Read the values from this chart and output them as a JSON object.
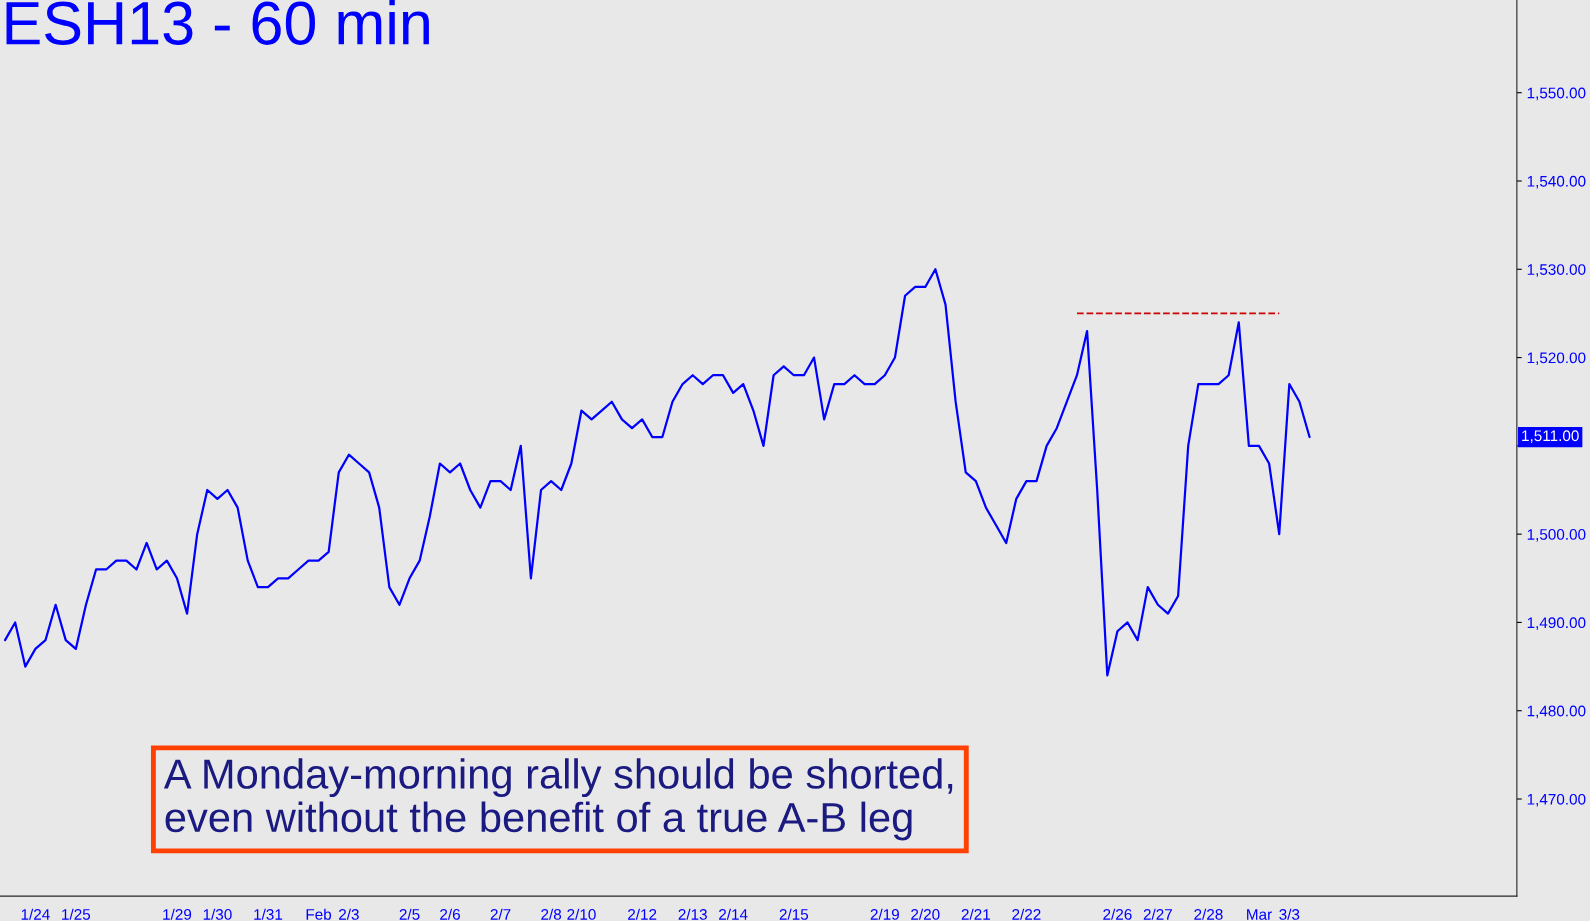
{
  "chart_data": {
    "type": "line",
    "title": "ESH13 - 60 min",
    "annotations": [
      "A Monday-morning rally should be shorted,\neven without the benefit of a true A-B leg",
      "1,511.00"
    ],
    "categories": [
      null,
      null,
      null,
      "1/24",
      null,
      null,
      null,
      "1/25",
      null,
      null,
      null,
      null,
      null,
      null,
      null,
      null,
      null,
      "1/29",
      null,
      null,
      null,
      "1/30",
      null,
      null,
      null,
      null,
      "1/31",
      null,
      null,
      null,
      null,
      "Feb",
      null,
      null,
      "2/3",
      null,
      null,
      null,
      null,
      null,
      "2/5",
      null,
      null,
      null,
      "2/6",
      null,
      null,
      null,
      null,
      "2/7",
      null,
      null,
      null,
      null,
      "2/8",
      null,
      null,
      "2/10",
      null,
      null,
      null,
      null,
      null,
      "2/12",
      null,
      null,
      null,
      null,
      "2/13",
      null,
      null,
      null,
      "2/14",
      null,
      null,
      null,
      null,
      null,
      "2/15",
      null,
      null,
      null,
      null,
      null,
      null,
      null,
      null,
      "2/19",
      null,
      null,
      null,
      "2/20",
      null,
      null,
      null,
      null,
      "2/21",
      null,
      null,
      null,
      null,
      "2/22",
      null,
      null,
      null,
      null,
      null,
      null,
      null,
      null,
      "2/26",
      null,
      null,
      null,
      "2/27",
      null,
      null,
      null,
      null,
      "2/28",
      null,
      null,
      null,
      null,
      "Mar",
      null,
      null,
      "3/3",
      null,
      null,
      null,
      null,
      null,
      null,
      null,
      null,
      null,
      null,
      null,
      null,
      null,
      null,
      null,
      null,
      null,
      null,
      null,
      null,
      null,
      null
    ],
    "ylim": [
      1459,
      1560.5
    ],
    "yticks": [
      {
        "value": 1470,
        "label": "1,470.00"
      },
      {
        "value": 1480,
        "label": "1,480.00"
      },
      {
        "value": 1490,
        "label": "1,490.00"
      },
      {
        "value": 1500,
        "label": "1,500.00"
      },
      {
        "value": 1510,
        "label": null
      },
      {
        "value": 1520,
        "label": "1,520.00"
      },
      {
        "value": 1530,
        "label": "1,530.00"
      },
      {
        "value": 1540,
        "label": "1,540.00"
      },
      {
        "value": 1550,
        "label": "1,550.00"
      }
    ],
    "series": [
      {
        "color": "#0000ff",
        "line_style": "solid",
        "values": [
          1488,
          1490,
          1485,
          1487,
          1488,
          1492,
          1488,
          1487,
          1492,
          1496,
          1496,
          1497,
          1497,
          1496,
          1499,
          1496,
          1497,
          1495,
          1491,
          1500,
          1505,
          1504,
          1505,
          1503,
          1497,
          1494,
          1494,
          1495,
          1495,
          1496,
          1497,
          1497,
          1498,
          1507,
          1509,
          1508,
          1507,
          1503,
          1494,
          1492,
          1495,
          1497,
          1502,
          1508,
          1507,
          1508,
          1505,
          1503,
          1506,
          1506,
          1505,
          1510,
          1495,
          1505,
          1506,
          1505,
          1508,
          1514,
          1513,
          1514,
          1515,
          1513,
          1512,
          1513,
          1511,
          1511,
          1515,
          1517,
          1518,
          1517,
          1518,
          1518,
          1516,
          1517,
          1514,
          1510,
          1518,
          1519,
          1518,
          1518,
          1520,
          1513,
          1517,
          1517,
          1518,
          1517,
          1517,
          1518,
          1520,
          1527,
          1528,
          1528,
          1530,
          1526,
          1515,
          1507,
          1506,
          1503,
          1501,
          1499,
          1504,
          1506,
          1506,
          1510,
          1512,
          1515,
          1518,
          1523,
          1505,
          1484,
          1489,
          1490,
          1488,
          1494,
          1492,
          1491,
          1493,
          1510,
          1517,
          1517,
          1517,
          1518,
          1524,
          1510,
          1510,
          1508,
          1500,
          1517,
          1515,
          1511,
          null,
          null,
          null,
          null,
          null,
          null,
          null,
          null,
          null,
          null,
          null,
          null,
          null,
          null,
          null,
          null,
          null,
          null,
          null,
          null
        ]
      },
      {
        "color": "#cc0000",
        "line_style": "dashed",
        "values": [
          null,
          null,
          null,
          null,
          null,
          null,
          null,
          null,
          null,
          null,
          null,
          null,
          null,
          null,
          null,
          null,
          null,
          null,
          null,
          null,
          null,
          null,
          null,
          null,
          null,
          null,
          null,
          null,
          null,
          null,
          null,
          null,
          null,
          null,
          null,
          null,
          null,
          null,
          null,
          null,
          null,
          null,
          null,
          null,
          null,
          null,
          null,
          null,
          null,
          null,
          null,
          null,
          null,
          null,
          null,
          null,
          null,
          null,
          null,
          null,
          null,
          null,
          null,
          null,
          null,
          null,
          null,
          null,
          null,
          null,
          null,
          null,
          null,
          null,
          null,
          null,
          null,
          null,
          null,
          null,
          null,
          null,
          null,
          null,
          null,
          null,
          null,
          null,
          null,
          null,
          null,
          null,
          null,
          null,
          null,
          null,
          null,
          null,
          null,
          null,
          null,
          null,
          null,
          null,
          null,
          null,
          1525,
          1525,
          1525,
          1525,
          1525,
          1525,
          1525,
          1525,
          1525,
          1525,
          1525,
          1525,
          1525,
          1525,
          1525,
          1525,
          1525,
          1525,
          1525,
          1525,
          1525,
          null,
          null,
          null,
          null,
          null,
          null,
          null,
          null,
          null,
          null,
          null,
          null,
          null,
          null,
          null,
          null,
          null,
          null,
          null,
          null,
          null,
          null,
          null
        ]
      }
    ]
  }
}
